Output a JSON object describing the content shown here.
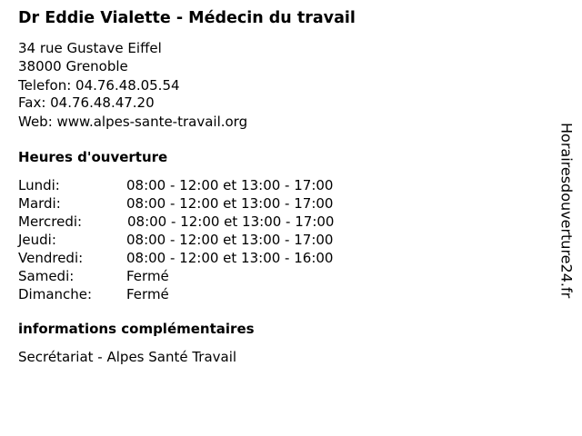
{
  "title": "Dr Eddie Vialette - Médecin du travail",
  "address": {
    "street": "34 rue Gustave Eiffel",
    "city": "38000 Grenoble",
    "phone": "Telefon: 04.76.48.05.54",
    "fax": "Fax: 04.76.48.47.20",
    "web": "Web: www.alpes-sante-travail.org"
  },
  "hours": {
    "heading": "Heures d'ouverture",
    "rows": [
      {
        "day": "Lundi:",
        "time": "08:00 - 12:00 et 13:00 - 17:00"
      },
      {
        "day": "Mardi:",
        "time": "08:00 - 12:00 et 13:00 - 17:00"
      },
      {
        "day": "Mercredi:",
        "time": "08:00 - 12:00 et 13:00 - 17:00"
      },
      {
        "day": "Jeudi:",
        "time": "08:00 - 12:00 et 13:00 - 17:00"
      },
      {
        "day": "Vendredi:",
        "time": "08:00 - 12:00 et 13:00 - 16:00"
      },
      {
        "day": "Samedi:",
        "time": "Fermé"
      },
      {
        "day": "Dimanche:",
        "time": "Fermé"
      }
    ]
  },
  "info": {
    "heading": "informations complémentaires",
    "text": "Secrétariat - Alpes Santé Travail"
  },
  "watermark": "Horairesdouverture24.fr"
}
